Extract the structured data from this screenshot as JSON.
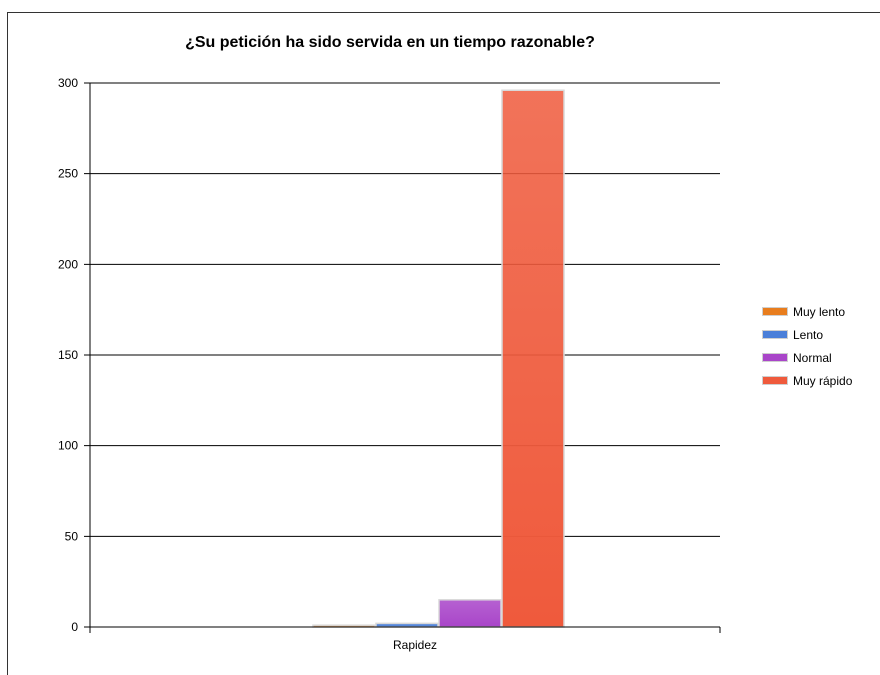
{
  "chart_data": {
    "type": "bar",
    "title": "¿Su petición ha sido servida en un tiempo razonable?",
    "categories": [
      "Rapidez"
    ],
    "xlabel": "",
    "ylabel": "",
    "ylim": [
      0,
      300
    ],
    "yticks": [
      0,
      50,
      100,
      150,
      200,
      250,
      300
    ],
    "grid": true,
    "legend_position": "right",
    "series": [
      {
        "name": "Muy lento",
        "values": [
          1
        ],
        "color": "#e87d1e"
      },
      {
        "name": "Lento",
        "values": [
          2
        ],
        "color": "#4a7fd9"
      },
      {
        "name": "Normal",
        "values": [
          15
        ],
        "color": "#a945c9"
      },
      {
        "name": "Muy rápido",
        "values": [
          296
        ],
        "color": "#ef5a3c"
      }
    ]
  }
}
